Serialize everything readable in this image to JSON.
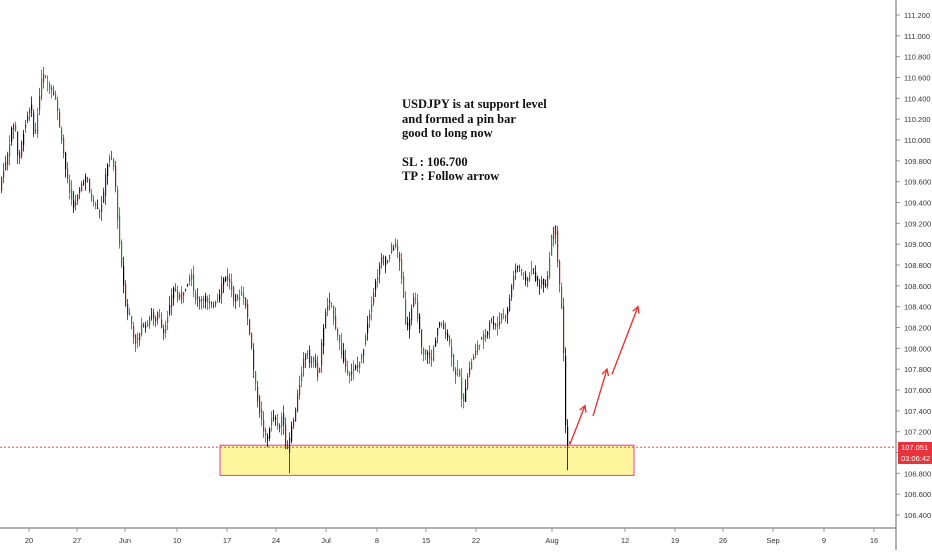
{
  "chart_data": {
    "type": "candlestick",
    "symbol_text": {
      "line1": "USDJPY is at support level",
      "line2": "and formed a pin bar",
      "line3": "good to long now",
      "line4": "SL : 106.700",
      "line5": "TP : Follow arrow"
    },
    "y_axis": {
      "range": [
        106.3,
        111.3
      ],
      "ticks": [
        "111.200",
        "111.000",
        "110.800",
        "110.600",
        "110.400",
        "110.200",
        "110.000",
        "109.800",
        "109.600",
        "109.400",
        "109.200",
        "109.000",
        "108.800",
        "108.600",
        "108.400",
        "108.200",
        "108.000",
        "107.800",
        "107.600",
        "107.400",
        "107.200",
        "107.000",
        "106.800",
        "106.600",
        "106.400"
      ]
    },
    "x_axis": {
      "ticks": [
        "20",
        "27",
        "Jun",
        "10",
        "17",
        "24",
        "Jul",
        "8",
        "15",
        "22",
        "Aug",
        "12",
        "19",
        "26",
        "Sep",
        "9",
        "16"
      ]
    },
    "current_price": {
      "value": "107.051",
      "countdown": "03:06:42",
      "color": "#e8323c"
    },
    "support_zone": {
      "low": 106.78,
      "high": 107.07,
      "fill": "#fff59d",
      "border": "#e040a0"
    },
    "price_path": [
      [
        0,
        109.45
      ],
      [
        4,
        109.7
      ],
      [
        8,
        109.8
      ],
      [
        12,
        110.05
      ],
      [
        16,
        110.2
      ],
      [
        20,
        109.75
      ],
      [
        24,
        110.05
      ],
      [
        28,
        110.2
      ],
      [
        32,
        110.35
      ],
      [
        36,
        110.0
      ],
      [
        40,
        110.35
      ],
      [
        44,
        110.65
      ],
      [
        48,
        110.55
      ],
      [
        52,
        110.5
      ],
      [
        56,
        110.45
      ],
      [
        60,
        110.2
      ],
      [
        64,
        109.95
      ],
      [
        68,
        109.65
      ],
      [
        72,
        109.45
      ],
      [
        76,
        109.35
      ],
      [
        80,
        109.5
      ],
      [
        84,
        109.6
      ],
      [
        88,
        109.65
      ],
      [
        92,
        109.45
      ],
      [
        96,
        109.4
      ],
      [
        100,
        109.3
      ],
      [
        104,
        109.4
      ],
      [
        108,
        109.75
      ],
      [
        112,
        109.85
      ],
      [
        116,
        109.7
      ],
      [
        120,
        109.1
      ],
      [
        124,
        108.7
      ],
      [
        128,
        108.35
      ],
      [
        132,
        108.3
      ],
      [
        136,
        108.05
      ],
      [
        140,
        108.1
      ],
      [
        144,
        108.25
      ],
      [
        148,
        108.2
      ],
      [
        152,
        108.35
      ],
      [
        156,
        108.25
      ],
      [
        160,
        108.35
      ],
      [
        164,
        108.15
      ],
      [
        168,
        108.25
      ],
      [
        172,
        108.45
      ],
      [
        176,
        108.6
      ],
      [
        180,
        108.45
      ],
      [
        184,
        108.55
      ],
      [
        188,
        108.6
      ],
      [
        192,
        108.75
      ],
      [
        196,
        108.5
      ],
      [
        200,
        108.45
      ],
      [
        204,
        108.5
      ],
      [
        208,
        108.45
      ],
      [
        212,
        108.4
      ],
      [
        216,
        108.45
      ],
      [
        220,
        108.5
      ],
      [
        224,
        108.65
      ],
      [
        228,
        108.7
      ],
      [
        232,
        108.6
      ],
      [
        236,
        108.45
      ],
      [
        240,
        108.5
      ],
      [
        244,
        108.55
      ],
      [
        248,
        108.35
      ],
      [
        252,
        108.1
      ],
      [
        256,
        107.7
      ],
      [
        260,
        107.45
      ],
      [
        264,
        107.25
      ],
      [
        268,
        107.1
      ],
      [
        272,
        107.3
      ],
      [
        276,
        107.35
      ],
      [
        280,
        107.2
      ],
      [
        284,
        107.4
      ],
      [
        288,
        106.95
      ],
      [
        292,
        107.2
      ],
      [
        296,
        107.35
      ],
      [
        300,
        107.6
      ],
      [
        304,
        107.85
      ],
      [
        308,
        108.0
      ],
      [
        312,
        107.85
      ],
      [
        316,
        107.9
      ],
      [
        320,
        107.7
      ],
      [
        324,
        108.15
      ],
      [
        328,
        108.4
      ],
      [
        332,
        108.45
      ],
      [
        336,
        108.25
      ],
      [
        340,
        108.1
      ],
      [
        344,
        107.9
      ],
      [
        348,
        107.8
      ],
      [
        352,
        107.75
      ],
      [
        356,
        107.8
      ],
      [
        360,
        107.85
      ],
      [
        364,
        107.95
      ],
      [
        368,
        108.2
      ],
      [
        372,
        108.4
      ],
      [
        376,
        108.6
      ],
      [
        380,
        108.75
      ],
      [
        384,
        108.9
      ],
      [
        388,
        108.8
      ],
      [
        392,
        108.95
      ],
      [
        396,
        109.0
      ],
      [
        400,
        108.9
      ],
      [
        404,
        108.6
      ],
      [
        408,
        108.15
      ],
      [
        412,
        108.35
      ],
      [
        416,
        108.5
      ],
      [
        420,
        108.25
      ],
      [
        424,
        107.9
      ],
      [
        428,
        108.0
      ],
      [
        432,
        107.85
      ],
      [
        436,
        108.05
      ],
      [
        440,
        108.25
      ],
      [
        444,
        108.2
      ],
      [
        448,
        108.15
      ],
      [
        452,
        108.0
      ],
      [
        456,
        107.75
      ],
      [
        460,
        107.8
      ],
      [
        464,
        107.45
      ],
      [
        468,
        107.7
      ],
      [
        472,
        107.85
      ],
      [
        476,
        107.95
      ],
      [
        480,
        108.05
      ],
      [
        484,
        108.1
      ],
      [
        488,
        108.15
      ],
      [
        492,
        108.3
      ],
      [
        496,
        108.2
      ],
      [
        500,
        108.25
      ],
      [
        504,
        108.35
      ],
      [
        508,
        108.3
      ],
      [
        512,
        108.55
      ],
      [
        516,
        108.75
      ],
      [
        520,
        108.8
      ],
      [
        524,
        108.7
      ],
      [
        528,
        108.65
      ],
      [
        532,
        108.75
      ],
      [
        536,
        108.7
      ],
      [
        540,
        108.6
      ],
      [
        544,
        108.65
      ],
      [
        548,
        108.6
      ],
      [
        552,
        109.0
      ],
      [
        556,
        109.25
      ],
      [
        560,
        108.7
      ],
      [
        564,
        108.3
      ],
      [
        567,
        107.25
      ],
      [
        569,
        107.07
      ]
    ],
    "arrows": [
      {
        "from": [
          570,
          107.08
        ],
        "to": [
          585,
          107.45
        ]
      },
      {
        "from": [
          593,
          107.35
        ],
        "to": [
          607,
          107.8
        ]
      },
      {
        "from": [
          612,
          107.75
        ],
        "to": [
          638,
          108.4
        ]
      }
    ]
  }
}
